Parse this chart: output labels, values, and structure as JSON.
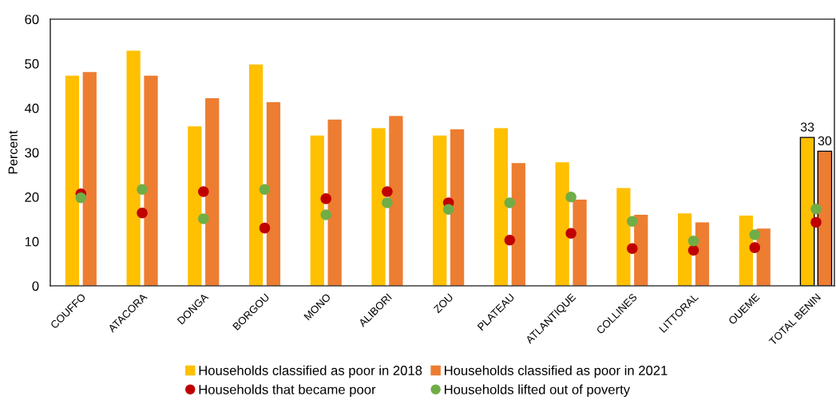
{
  "chart_data": {
    "type": "bar",
    "ylabel": "Percent",
    "ylim": [
      0,
      60
    ],
    "yticks": [
      0,
      10,
      20,
      30,
      40,
      50,
      60
    ],
    "legend": "bottom",
    "marker": "circle",
    "categories": [
      "COUFFO",
      "ATACORA",
      "DONGA",
      "BORGOU",
      "MONO",
      "ALIBORI",
      "ZOU",
      "PLATEAU",
      "ATLANTIQUE",
      "COLLINES",
      "LITTORAL",
      "OUEME",
      "TOTAL BENIN"
    ],
    "series": [
      {
        "name": "Households classified as poor in 2018",
        "color": "#ffc000",
        "values": [
          47.3,
          52.9,
          35.9,
          49.8,
          33.8,
          35.5,
          33.8,
          35.5,
          27.8,
          22.0,
          16.3,
          15.8,
          33.4
        ],
        "value_labels": [
          null,
          null,
          null,
          null,
          null,
          null,
          null,
          null,
          null,
          null,
          null,
          null,
          "33"
        ]
      },
      {
        "name": "Households classified as poor in 2021",
        "color": "#ed7d31",
        "values": [
          48.1,
          47.3,
          42.2,
          41.3,
          37.4,
          38.2,
          35.2,
          27.6,
          19.4,
          16.0,
          14.3,
          12.9,
          30.3
        ],
        "value_labels": [
          null,
          null,
          null,
          null,
          null,
          null,
          null,
          null,
          null,
          null,
          null,
          null,
          "30"
        ]
      },
      {
        "name": "Households that became poor",
        "type": "scatter",
        "color": "#c00000",
        "values": [
          20.7,
          16.4,
          21.2,
          13.0,
          19.6,
          21.2,
          18.7,
          10.3,
          11.8,
          8.4,
          8.0,
          8.6,
          14.3
        ]
      },
      {
        "name": "Households lifted out of poverty",
        "type": "scatter",
        "color": "#70ad47",
        "values": [
          19.8,
          21.7,
          15.1,
          21.7,
          16.0,
          18.7,
          17.2,
          18.7,
          20.0,
          14.5,
          10.1,
          11.5,
          17.3
        ]
      }
    ]
  }
}
